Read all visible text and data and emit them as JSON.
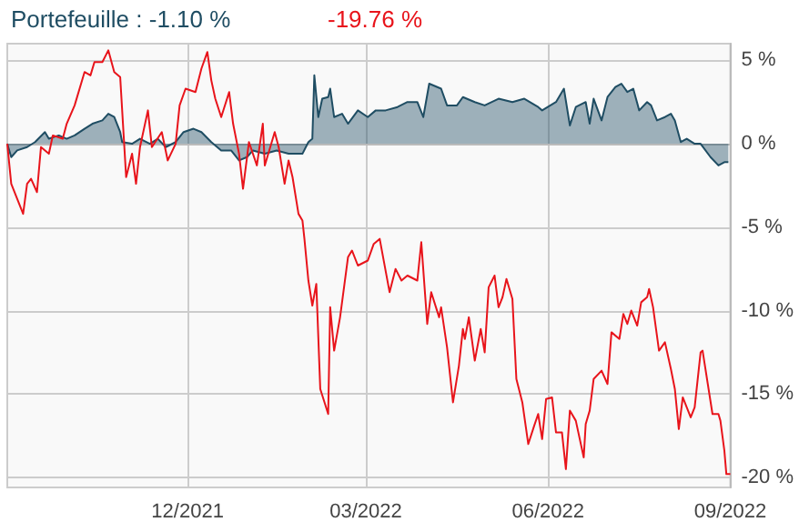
{
  "chart_data": {
    "type": "area",
    "annotations": [
      "Portefeuille : -1.10 %",
      "-19.76 %"
    ],
    "xlim": [
      "2021-09-01",
      "2022-09-01"
    ],
    "xticks": [
      {
        "value": "2021-12-01",
        "label": "12/2021"
      },
      {
        "value": "2022-03-01",
        "label": "03/2022"
      },
      {
        "value": "2022-06-01",
        "label": "06/2022"
      },
      {
        "value": "2022-09-01",
        "label": "09/2022"
      }
    ],
    "ylim": [
      -20.6,
      6
    ],
    "yticks": [
      {
        "value": 5,
        "label": "5 %"
      },
      {
        "value": 0,
        "label": "0 %"
      },
      {
        "value": -5,
        "label": "-5 %"
      },
      {
        "value": -10,
        "label": "-10 %"
      },
      {
        "value": -15,
        "label": "-15 %"
      },
      {
        "value": -20,
        "label": "-20 %"
      }
    ],
    "grid": true,
    "series": [
      {
        "color": "#1f4d63",
        "x": [
          "2021-09-01",
          "2021-09-03",
          "2021-09-06",
          "2021-09-11",
          "2021-09-15",
          "2021-09-20",
          "2021-09-22",
          "2021-09-27",
          "2021-10-01",
          "2021-10-05",
          "2021-10-10",
          "2021-10-14",
          "2021-10-19",
          "2021-10-22",
          "2021-10-25",
          "2021-10-28",
          "2021-10-29",
          "2021-11-03",
          "2021-11-07",
          "2021-11-12",
          "2021-11-16",
          "2021-11-20",
          "2021-11-25",
          "2021-11-29",
          "2021-12-04",
          "2021-12-08",
          "2021-12-13",
          "2021-12-18",
          "2021-12-23",
          "2021-12-27",
          "2021-12-31",
          "2022-01-03",
          "2022-01-09",
          "2022-01-15",
          "2022-01-21",
          "2022-01-28",
          "2022-01-31",
          "2022-02-02",
          "2022-02-03",
          "2022-02-05",
          "2022-02-07",
          "2022-02-10",
          "2022-02-11",
          "2022-02-13",
          "2022-02-17",
          "2022-02-20",
          "2022-02-25",
          "2022-03-02",
          "2022-03-06",
          "2022-03-11",
          "2022-03-17",
          "2022-03-22",
          "2022-03-27",
          "2022-03-30",
          "2022-04-02",
          "2022-04-08",
          "2022-04-11",
          "2022-04-16",
          "2022-04-19",
          "2022-04-25",
          "2022-04-30",
          "2022-05-07",
          "2022-05-14",
          "2022-05-20",
          "2022-05-27",
          "2022-05-29",
          "2022-06-05",
          "2022-06-09",
          "2022-06-12",
          "2022-06-15",
          "2022-06-20",
          "2022-06-22",
          "2022-06-24",
          "2022-06-28",
          "2022-07-01",
          "2022-07-05",
          "2022-07-08",
          "2022-07-11",
          "2022-07-14",
          "2022-07-17",
          "2022-07-21",
          "2022-07-23",
          "2022-07-26",
          "2022-07-30",
          "2022-08-02",
          "2022-08-04",
          "2022-08-07",
          "2022-08-10",
          "2022-08-14",
          "2022-08-17",
          "2022-08-22",
          "2022-08-26",
          "2022-08-29",
          "2022-08-31"
        ],
        "values": [
          0,
          -0.8,
          -0.4,
          -0.2,
          0.1,
          0.7,
          0.3,
          0.5,
          0.3,
          0.5,
          0.9,
          1.2,
          1.4,
          1.8,
          1.6,
          0.7,
          0.1,
          0,
          0.3,
          0,
          0.3,
          -0.2,
          0.1,
          0.7,
          0.9,
          0.7,
          0.1,
          -0.4,
          -0.4,
          -1.0,
          -0.8,
          -0.4,
          -0.6,
          -0.4,
          -0.6,
          -0.6,
          0.1,
          0.3,
          4.1,
          1.6,
          2.7,
          2.8,
          3.3,
          1.6,
          1.8,
          1.2,
          2.0,
          1.6,
          2.0,
          2.0,
          2.2,
          2.5,
          2.5,
          1.6,
          3.6,
          3.3,
          2.3,
          2.3,
          2.8,
          2.5,
          2.3,
          2.7,
          2.5,
          2.7,
          2.2,
          2.0,
          2.5,
          3.3,
          1.1,
          2.2,
          2.5,
          1.2,
          2.7,
          1.4,
          2.8,
          3.4,
          3.6,
          3.1,
          3.3,
          2.0,
          2.5,
          2.3,
          1.4,
          1.6,
          1.8,
          1.4,
          0.1,
          0.3,
          0,
          0,
          -0.8,
          -1.3,
          -1.1,
          -1.1
        ]
      },
      {
        "type": "line",
        "color": "#e8141b",
        "x": [
          "2021-09-01",
          "2021-09-03",
          "2021-09-09",
          "2021-09-11",
          "2021-09-13",
          "2021-09-16",
          "2021-09-18",
          "2021-09-22",
          "2021-09-24",
          "2021-09-29",
          "2021-10-01",
          "2021-10-05",
          "2021-10-10",
          "2021-10-13",
          "2021-10-15",
          "2021-10-19",
          "2021-10-22",
          "2021-10-25",
          "2021-10-28",
          "2021-10-31",
          "2021-11-03",
          "2021-11-05",
          "2021-11-07",
          "2021-11-11",
          "2021-11-13",
          "2021-11-18",
          "2021-11-21",
          "2021-11-25",
          "2021-11-27",
          "2021-11-30",
          "2021-12-05",
          "2021-12-08",
          "2021-12-11",
          "2021-12-13",
          "2021-12-15",
          "2021-12-18",
          "2021-12-22",
          "2021-12-24",
          "2021-12-27",
          "2021-12-29",
          "2022-01-01",
          "2022-01-05",
          "2022-01-08",
          "2022-01-09",
          "2022-01-14",
          "2022-01-16",
          "2022-01-19",
          "2022-01-21",
          "2022-01-23",
          "2022-01-26",
          "2022-01-28",
          "2022-01-29",
          "2022-01-31",
          "2022-02-02",
          "2022-02-04",
          "2022-02-06",
          "2022-02-10",
          "2022-02-11",
          "2022-02-13",
          "2022-02-16",
          "2022-02-20",
          "2022-02-22",
          "2022-02-25",
          "2022-03-02",
          "2022-03-05",
          "2022-03-08",
          "2022-03-13",
          "2022-03-16",
          "2022-03-19",
          "2022-03-22",
          "2022-03-27",
          "2022-03-29",
          "2022-04-01",
          "2022-04-03",
          "2022-04-07",
          "2022-04-08",
          "2022-04-11",
          "2022-04-14",
          "2022-04-17",
          "2022-04-19",
          "2022-04-20",
          "2022-04-22",
          "2022-04-25",
          "2022-04-28",
          "2022-04-30",
          "2022-05-02",
          "2022-05-05",
          "2022-05-07",
          "2022-05-09",
          "2022-05-11",
          "2022-05-14",
          "2022-05-16",
          "2022-05-19",
          "2022-05-22",
          "2022-05-25",
          "2022-05-27",
          "2022-05-29",
          "2022-05-31",
          "2022-06-03",
          "2022-06-05",
          "2022-06-08",
          "2022-06-10",
          "2022-06-12",
          "2022-06-15",
          "2022-06-19",
          "2022-06-20",
          "2022-06-22",
          "2022-06-24",
          "2022-06-28",
          "2022-07-01",
          "2022-07-03",
          "2022-07-07",
          "2022-07-09",
          "2022-07-11",
          "2022-07-13",
          "2022-07-16",
          "2022-07-18",
          "2022-07-21",
          "2022-07-22",
          "2022-07-24",
          "2022-07-27",
          "2022-07-30",
          "2022-08-02",
          "2022-08-04",
          "2022-08-06",
          "2022-08-08",
          "2022-08-12",
          "2022-08-14",
          "2022-08-17",
          "2022-08-18",
          "2022-08-23",
          "2022-08-26",
          "2022-08-27",
          "2022-08-29",
          "2022-08-30",
          "2022-09-01"
        ],
        "values": [
          0,
          -2.4,
          -4.2,
          -2.4,
          -2.1,
          -2.9,
          -0.2,
          -0.6,
          0.5,
          0.3,
          1.2,
          2.3,
          4.3,
          4.1,
          4.9,
          4.9,
          5.6,
          4.3,
          4.0,
          -2.0,
          -0.6,
          -2.4,
          -0.2,
          2.0,
          -0.2,
          0.7,
          -1.0,
          0,
          2.3,
          3.3,
          3.1,
          4.5,
          5.5,
          3.8,
          2.7,
          1.6,
          3.1,
          1.2,
          -0.6,
          -2.7,
          0.1,
          -1.3,
          1.2,
          -1.3,
          0.7,
          -0.2,
          -2.4,
          -1.0,
          -2.0,
          -4.2,
          -4.6,
          -5.7,
          -8.2,
          -9.7,
          -8.4,
          -14.7,
          -16.2,
          -9.8,
          -12.4,
          -10.4,
          -6.8,
          -6.4,
          -7.3,
          -7.0,
          -6.0,
          -5.7,
          -8.9,
          -7.5,
          -8.2,
          -7.9,
          -8.2,
          -5.9,
          -10.8,
          -8.9,
          -10.4,
          -9.8,
          -12.2,
          -15.5,
          -13.3,
          -11.1,
          -11.7,
          -10.4,
          -13.0,
          -11.1,
          -12.5,
          -8.6,
          -7.9,
          -9.8,
          -9.2,
          -8.1,
          -9.3,
          -14.1,
          -15.5,
          -18.0,
          -16.9,
          -16.2,
          -17.7,
          -15.3,
          -15.2,
          -17.3,
          -17.3,
          -19.5,
          -16.0,
          -16.6,
          -18.8,
          -16.8,
          -16.0,
          -14.1,
          -13.6,
          -14.4,
          -11.3,
          -11.7,
          -10.2,
          -10.8,
          -10.0,
          -10.9,
          -9.5,
          -9.2,
          -8.7,
          -9.8,
          -12.4,
          -11.9,
          -13.5,
          -14.7,
          -17.1,
          -15.2,
          -16.4,
          -15.8,
          -12.5,
          -12.4,
          -16.2,
          -16.2,
          -16.6,
          -18.4,
          -19.8,
          -19.8
        ]
      }
    ]
  }
}
